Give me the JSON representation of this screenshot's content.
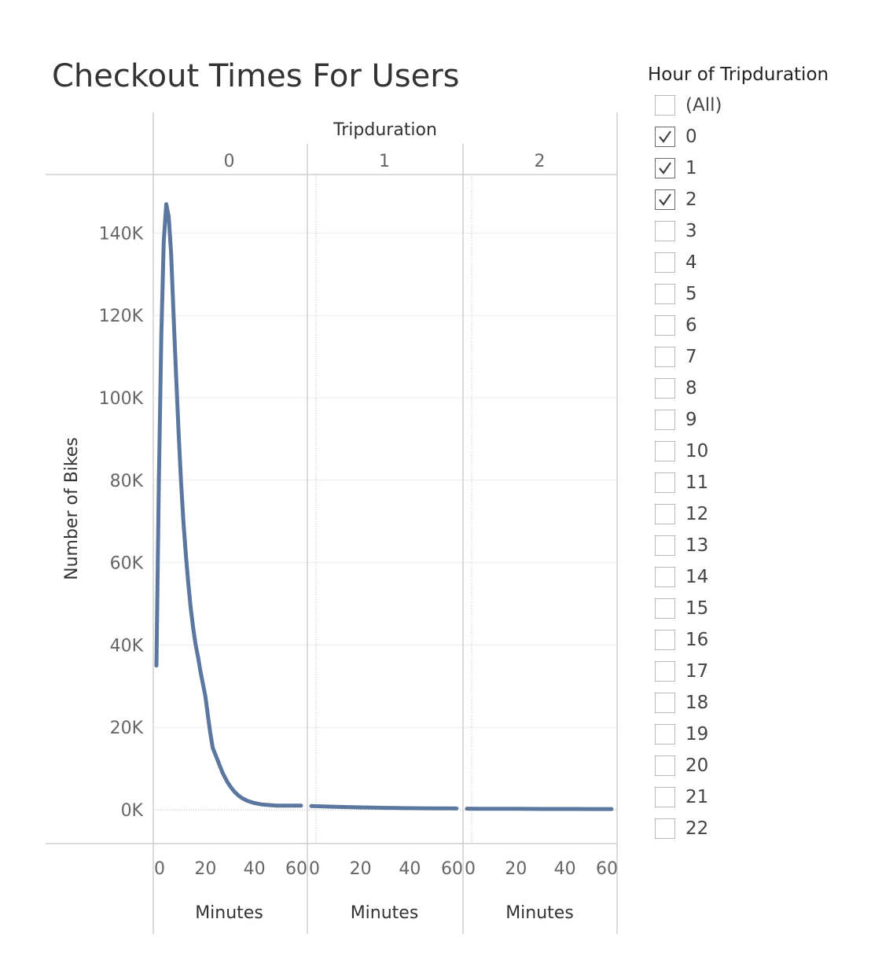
{
  "title": "Checkout Times For Users",
  "filter": {
    "title": "Hour of Tripduration",
    "items": [
      {
        "label": "(All)",
        "checked": false
      },
      {
        "label": "0",
        "checked": true
      },
      {
        "label": "1",
        "checked": true
      },
      {
        "label": "2",
        "checked": true
      },
      {
        "label": "3",
        "checked": false
      },
      {
        "label": "4",
        "checked": false
      },
      {
        "label": "5",
        "checked": false
      },
      {
        "label": "6",
        "checked": false
      },
      {
        "label": "7",
        "checked": false
      },
      {
        "label": "8",
        "checked": false
      },
      {
        "label": "9",
        "checked": false
      },
      {
        "label": "10",
        "checked": false
      },
      {
        "label": "11",
        "checked": false
      },
      {
        "label": "12",
        "checked": false
      },
      {
        "label": "13",
        "checked": false
      },
      {
        "label": "14",
        "checked": false
      },
      {
        "label": "15",
        "checked": false
      },
      {
        "label": "16",
        "checked": false
      },
      {
        "label": "17",
        "checked": false
      },
      {
        "label": "18",
        "checked": false
      },
      {
        "label": "19",
        "checked": false
      },
      {
        "label": "20",
        "checked": false
      },
      {
        "label": "21",
        "checked": false
      },
      {
        "label": "22",
        "checked": false
      }
    ]
  },
  "chart_data": {
    "type": "line",
    "color": "#5b77a0",
    "column_header": "Tripduration",
    "ylabel": "Number of Bikes",
    "ylim": [
      0,
      150000
    ],
    "y_ticks": [
      0,
      20000,
      40000,
      60000,
      80000,
      100000,
      120000,
      140000
    ],
    "y_tick_labels": [
      "0K",
      "20K",
      "40K",
      "60K",
      "80K",
      "100K",
      "120K",
      "140K"
    ],
    "x_ticks": [
      0,
      20,
      40,
      60
    ],
    "x_tick_labels": [
      "0",
      "20",
      "40",
      "60"
    ],
    "xlim": [
      0,
      60
    ],
    "grid": true,
    "panels": [
      {
        "header": "0",
        "xlabel": "Minutes",
        "x": [
          0,
          1,
          2,
          3,
          4,
          5,
          6,
          7,
          8,
          9,
          10,
          11,
          12,
          13,
          14,
          15,
          16,
          17,
          18,
          19,
          20,
          21,
          22,
          23,
          24,
          25,
          26,
          27,
          28,
          29,
          30,
          31,
          32,
          33,
          34,
          35,
          36,
          37,
          38,
          39,
          40,
          41,
          42,
          43,
          44,
          45,
          46,
          47,
          48,
          49,
          50,
          51,
          52,
          53,
          54,
          55,
          56,
          57,
          58,
          59
        ],
        "values": [
          35000,
          80000,
          115000,
          138000,
          147000,
          144000,
          135000,
          120000,
          106000,
          92000,
          80000,
          70000,
          62000,
          55000,
          49000,
          44000,
          40000,
          37000,
          33500,
          30500,
          27500,
          23000,
          18500,
          15000,
          13500,
          12000,
          10500,
          9000,
          7800,
          6700,
          5800,
          5000,
          4300,
          3700,
          3200,
          2800,
          2500,
          2200,
          2000,
          1800,
          1650,
          1500,
          1400,
          1300,
          1250,
          1200,
          1150,
          1100,
          1050,
          1000,
          1000,
          1000,
          1000,
          1000,
          1000,
          1000,
          1000,
          1000,
          1000,
          1000
        ]
      },
      {
        "header": "1",
        "xlabel": "Minutes",
        "x": [
          0,
          5,
          10,
          15,
          20,
          25,
          30,
          35,
          40,
          45,
          50,
          55,
          59
        ],
        "values": [
          900,
          800,
          720,
          640,
          570,
          510,
          460,
          420,
          390,
          360,
          340,
          320,
          300
        ]
      },
      {
        "header": "2",
        "xlabel": "Minutes",
        "x": [
          0,
          5,
          10,
          15,
          20,
          25,
          30,
          35,
          40,
          45,
          50,
          55,
          59
        ],
        "values": [
          260,
          250,
          240,
          230,
          220,
          210,
          200,
          195,
          190,
          185,
          180,
          175,
          170
        ]
      }
    ]
  }
}
